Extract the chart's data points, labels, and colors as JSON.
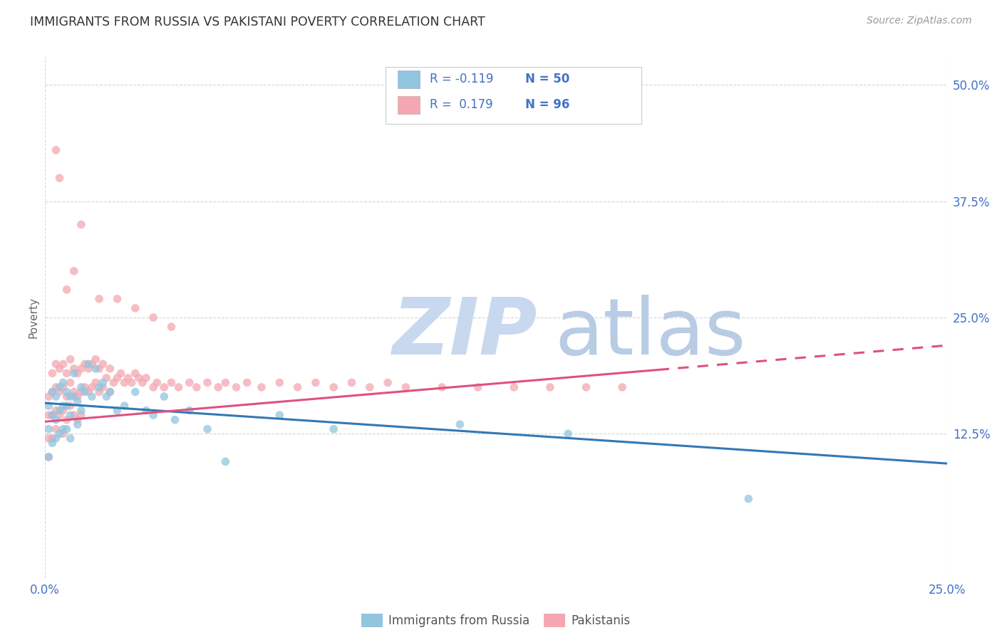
{
  "title": "IMMIGRANTS FROM RUSSIA VS PAKISTANI POVERTY CORRELATION CHART",
  "source": "Source: ZipAtlas.com",
  "ylabel": "Poverty",
  "xmin": 0.0,
  "xmax": 0.25,
  "ymin": -0.03,
  "ymax": 0.53,
  "yticks": [
    0.125,
    0.25,
    0.375,
    0.5
  ],
  "ytick_labels": [
    "12.5%",
    "25.0%",
    "37.5%",
    "50.0%"
  ],
  "xticks": [
    0.0,
    0.25
  ],
  "xtick_labels": [
    "0.0%",
    "25.0%"
  ],
  "legend_label1": "Immigrants from Russia",
  "legend_label2": "Pakistanis",
  "r1": -0.119,
  "n1": 50,
  "r2": 0.179,
  "n2": 96,
  "color_blue": "#92c5de",
  "color_pink": "#f4a7b0",
  "color_blue_line": "#3478b5",
  "color_pink_line": "#e05080",
  "color_axis_labels": "#4472C4",
  "watermark_zip_color": "#c8d8ee",
  "watermark_atlas_color": "#b8cce4",
  "background_color": "#ffffff",
  "title_color": "#333333",
  "scatter_alpha": 0.75,
  "scatter_size": 70,
  "blue_line_x0": 0.0,
  "blue_line_y0": 0.158,
  "blue_line_x1": 0.25,
  "blue_line_y1": 0.093,
  "pink_line_x0": 0.0,
  "pink_line_y0": 0.138,
  "pink_line_x1": 0.25,
  "pink_line_y1": 0.22,
  "pink_line_solid_end": 0.17,
  "blue_points_x": [
    0.001,
    0.001,
    0.001,
    0.002,
    0.002,
    0.002,
    0.003,
    0.003,
    0.003,
    0.004,
    0.004,
    0.004,
    0.005,
    0.005,
    0.005,
    0.006,
    0.006,
    0.006,
    0.007,
    0.007,
    0.007,
    0.008,
    0.008,
    0.009,
    0.009,
    0.01,
    0.01,
    0.011,
    0.012,
    0.013,
    0.014,
    0.015,
    0.016,
    0.017,
    0.018,
    0.02,
    0.022,
    0.025,
    0.028,
    0.03,
    0.033,
    0.036,
    0.04,
    0.045,
    0.05,
    0.065,
    0.08,
    0.115,
    0.145,
    0.195
  ],
  "blue_points_y": [
    0.155,
    0.13,
    0.1,
    0.17,
    0.145,
    0.115,
    0.165,
    0.14,
    0.12,
    0.175,
    0.15,
    0.125,
    0.18,
    0.155,
    0.13,
    0.17,
    0.155,
    0.13,
    0.165,
    0.145,
    0.12,
    0.19,
    0.165,
    0.16,
    0.135,
    0.175,
    0.15,
    0.17,
    0.2,
    0.165,
    0.195,
    0.175,
    0.18,
    0.165,
    0.17,
    0.15,
    0.155,
    0.17,
    0.15,
    0.145,
    0.165,
    0.14,
    0.15,
    0.13,
    0.095,
    0.145,
    0.13,
    0.135,
    0.125,
    0.055
  ],
  "pink_points_x": [
    0.001,
    0.001,
    0.001,
    0.001,
    0.002,
    0.002,
    0.002,
    0.002,
    0.003,
    0.003,
    0.003,
    0.003,
    0.004,
    0.004,
    0.004,
    0.005,
    0.005,
    0.005,
    0.005,
    0.006,
    0.006,
    0.006,
    0.007,
    0.007,
    0.007,
    0.008,
    0.008,
    0.008,
    0.009,
    0.009,
    0.009,
    0.01,
    0.01,
    0.01,
    0.011,
    0.011,
    0.012,
    0.012,
    0.013,
    0.013,
    0.014,
    0.014,
    0.015,
    0.015,
    0.016,
    0.016,
    0.017,
    0.018,
    0.018,
    0.019,
    0.02,
    0.021,
    0.022,
    0.023,
    0.024,
    0.025,
    0.026,
    0.027,
    0.028,
    0.03,
    0.031,
    0.033,
    0.035,
    0.037,
    0.04,
    0.042,
    0.045,
    0.048,
    0.05,
    0.053,
    0.056,
    0.06,
    0.065,
    0.07,
    0.075,
    0.08,
    0.085,
    0.09,
    0.095,
    0.1,
    0.11,
    0.12,
    0.13,
    0.14,
    0.15,
    0.16,
    0.003,
    0.004,
    0.025,
    0.03,
    0.035,
    0.01,
    0.008,
    0.006,
    0.015,
    0.02
  ],
  "pink_points_y": [
    0.165,
    0.145,
    0.12,
    0.1,
    0.19,
    0.17,
    0.145,
    0.12,
    0.2,
    0.175,
    0.15,
    0.13,
    0.195,
    0.17,
    0.145,
    0.2,
    0.175,
    0.15,
    0.125,
    0.19,
    0.165,
    0.14,
    0.205,
    0.18,
    0.155,
    0.195,
    0.17,
    0.145,
    0.19,
    0.165,
    0.14,
    0.195,
    0.17,
    0.145,
    0.2,
    0.175,
    0.195,
    0.17,
    0.2,
    0.175,
    0.205,
    0.18,
    0.195,
    0.17,
    0.2,
    0.175,
    0.185,
    0.195,
    0.17,
    0.18,
    0.185,
    0.19,
    0.18,
    0.185,
    0.18,
    0.19,
    0.185,
    0.18,
    0.185,
    0.175,
    0.18,
    0.175,
    0.18,
    0.175,
    0.18,
    0.175,
    0.18,
    0.175,
    0.18,
    0.175,
    0.18,
    0.175,
    0.18,
    0.175,
    0.18,
    0.175,
    0.18,
    0.175,
    0.18,
    0.175,
    0.175,
    0.175,
    0.175,
    0.175,
    0.175,
    0.175,
    0.43,
    0.4,
    0.26,
    0.25,
    0.24,
    0.35,
    0.3,
    0.28,
    0.27,
    0.27
  ]
}
